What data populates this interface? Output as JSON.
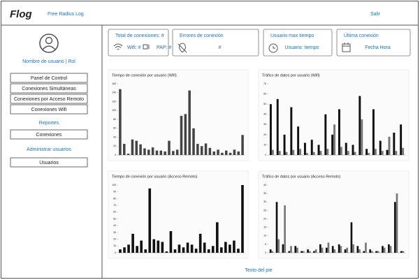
{
  "header": {
    "logo": "Flog",
    "app_name": "Free Radius Log",
    "logout": "Salir"
  },
  "sidebar": {
    "user_label": "Nombre de usuario | Rol",
    "menu": [
      "Panel de Control",
      "Conexiones Simultáneas",
      "Conexiones por Acceso Remoto",
      "Conexiones Wifi"
    ],
    "reports_heading": "Reportes",
    "reports": [
      "Conexiones"
    ],
    "admin_heading": "Administrar usuarios",
    "admin": [
      "Usuarios"
    ]
  },
  "cards": [
    {
      "title": "Total de conexiones: #",
      "items": [
        "Wifi: #",
        "PAP: #"
      ]
    },
    {
      "title": "Errores de conexión",
      "items": [
        "#"
      ]
    },
    {
      "title": "Usuario max tiempo",
      "items": [
        "Usuario: tiempo"
      ]
    },
    {
      "title": "Última conexión",
      "items": [
        "Fecha Hora"
      ]
    }
  ],
  "chart_data": [
    {
      "type": "bar",
      "title": "Tiempo de conexión por usuario (Wifi)",
      "ylim": [
        0,
        160
      ],
      "yticks": [
        0,
        20,
        40,
        60,
        80,
        100,
        120,
        140,
        160
      ],
      "series": [
        {
          "color": "#444444",
          "values": [
            148,
            25,
            3,
            35,
            32,
            24,
            15,
            12,
            17,
            10,
            10,
            8,
            32,
            9,
            12,
            88,
            92,
            145,
            60,
            25,
            20,
            26,
            16,
            8,
            12,
            5,
            10,
            5,
            12,
            8,
            45
          ]
        }
      ]
    },
    {
      "type": "bar",
      "title": "Tráfico de datos por usuario (Wifi)",
      "ylim": [
        0,
        70
      ],
      "yticks": [
        0,
        10,
        20,
        30,
        40,
        50,
        60,
        70
      ],
      "series": [
        {
          "color": "#111111",
          "values": [
            50,
            55,
            20,
            47,
            28,
            12,
            15,
            10,
            40,
            20,
            45,
            12,
            10,
            58,
            6,
            45,
            14,
            5,
            22,
            30
          ]
        },
        {
          "color": "#777777",
          "values": [
            5,
            4,
            3,
            5,
            6,
            2,
            3,
            4,
            6,
            30,
            8,
            4,
            3,
            35,
            2,
            6,
            4,
            18,
            4,
            7
          ]
        }
      ]
    },
    {
      "type": "bar",
      "title": "Tiempo de conexión por usuario (Acceso Remoto)",
      "ylim": [
        0,
        100
      ],
      "yticks": [
        0,
        10,
        20,
        30,
        40,
        50,
        60,
        70,
        80,
        90,
        100
      ],
      "series": [
        {
          "color": "#111111",
          "values": [
            5,
            8,
            12,
            28,
            10,
            18,
            5,
            95,
            20,
            18,
            16,
            2,
            32,
            5,
            12,
            8,
            15,
            12,
            6,
            28,
            15,
            5,
            10,
            45,
            8,
            16,
            12,
            18,
            6,
            100
          ]
        }
      ]
    },
    {
      "type": "bar",
      "title": "Tráfico de datos por usuario (Acceso Remoto)",
      "ylim": [
        0,
        40
      ],
      "yticks": [
        0,
        5,
        10,
        15,
        20,
        25,
        30,
        35,
        40
      ],
      "series": [
        {
          "color": "#111111",
          "values": [
            2,
            30,
            5,
            1,
            4,
            1,
            2,
            1,
            5,
            3,
            4,
            5,
            2,
            18,
            4,
            1,
            2,
            1,
            4,
            5,
            30,
            1
          ]
        },
        {
          "color": "#777777",
          "values": [
            1,
            8,
            28,
            4,
            3,
            1,
            1,
            2,
            3,
            6,
            2,
            4,
            3,
            5,
            2,
            6,
            1,
            1,
            3,
            4,
            35,
            1
          ]
        }
      ]
    }
  ],
  "footer": "Texto del pie"
}
